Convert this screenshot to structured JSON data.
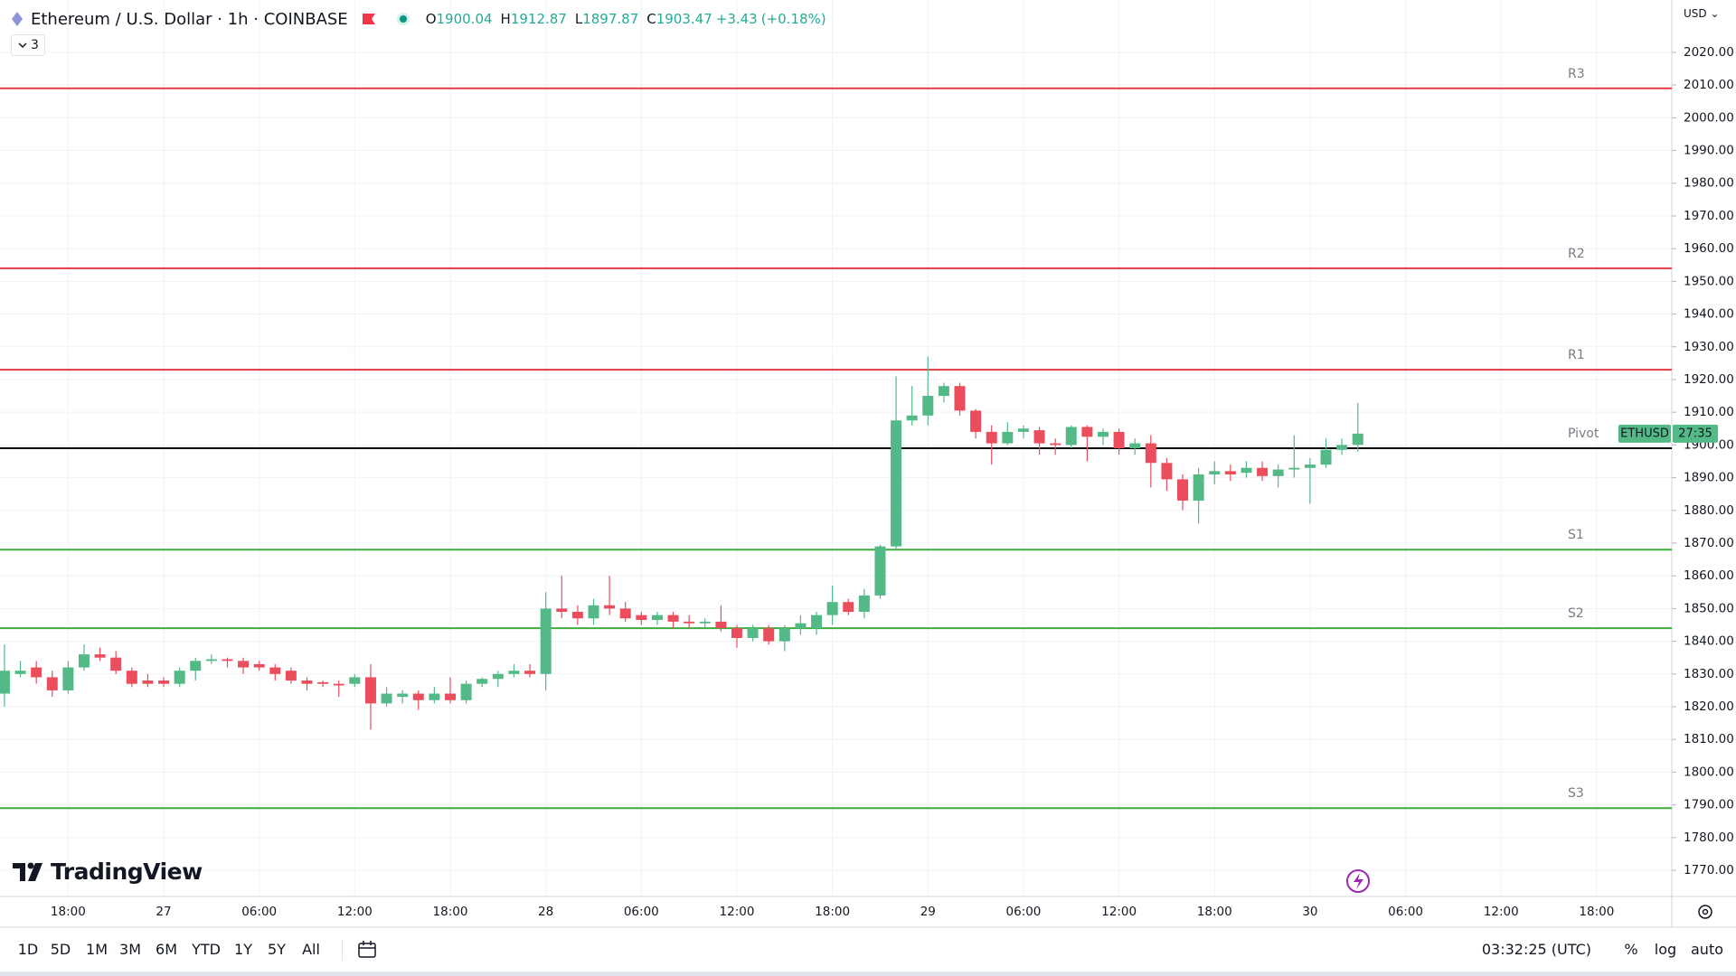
{
  "header": {
    "title": "Ethereum / U.S. Dollar · 1h · COINBASE",
    "ohlc_labels": [
      "O",
      "H",
      "L",
      "C"
    ],
    "change": "+3.43",
    "change_pct": "(+0.18%)",
    "indicators_count": "3"
  },
  "currency": "USD",
  "branding": "TradingView",
  "toolbar": {
    "ranges": [
      "1D",
      "5D",
      "1M",
      "3M",
      "6M",
      "YTD",
      "1Y",
      "5Y",
      "All"
    ],
    "clock": "03:32:25 (UTC)",
    "options": [
      "%",
      "log",
      "auto"
    ]
  },
  "chart_data": {
    "type": "candlestick",
    "categories": [
      null,
      null,
      null,
      null,
      "18:00",
      null,
      null,
      null,
      null,
      null,
      "27",
      null,
      null,
      null,
      null,
      null,
      "06:00",
      null,
      null,
      null,
      null,
      null,
      "12:00",
      null,
      null,
      null,
      null,
      null,
      "18:00",
      null,
      null,
      null,
      null,
      null,
      "28",
      null,
      null,
      null,
      null,
      null,
      "06:00",
      null,
      null,
      null,
      null,
      null,
      "12:00",
      null,
      null,
      null,
      null,
      null,
      "18:00",
      null,
      null,
      null,
      null,
      null,
      "29",
      null,
      null,
      null,
      null,
      null,
      "06:00",
      null,
      null,
      null,
      null,
      null,
      "12:00",
      null,
      null,
      null,
      null,
      null,
      "18:00",
      null,
      null,
      null,
      null,
      null,
      "30",
      null,
      null,
      null,
      null,
      null,
      "06:00",
      null,
      null,
      null,
      null,
      null,
      "12:00",
      null,
      null,
      null,
      null,
      null,
      "18:00",
      null,
      null,
      null,
      null
    ],
    "open": [
      1824,
      1830,
      1832,
      1829,
      1825,
      1832,
      1836,
      1835,
      1831,
      1828,
      1828,
      1827,
      1831,
      1834,
      1834.5,
      1834,
      1833,
      1832,
      1831,
      1828,
      1827.5,
      1827,
      1827,
      1829,
      1821,
      1823,
      1824,
      1822,
      1824,
      1822,
      1827,
      1828.5,
      1830,
      1831,
      1830,
      1850,
      1849,
      1847,
      1851,
      1850,
      1848,
      1846.5,
      1848,
      1846,
      1845.5,
      1846,
      1844,
      1841,
      1844,
      1840,
      1844,
      1844,
      1848,
      1852,
      1849,
      1854,
      1869,
      1907.5,
      1909,
      1915,
      1918,
      1910.5,
      1904,
      1900.5,
      1904,
      1904.5,
      1900.5,
      1900,
      1905.5,
      1902.5,
      1904,
      1899,
      1900.5,
      1894.5,
      1889.5,
      1883,
      1891,
      1892,
      1891.5,
      1893,
      1890.5,
      1892.5,
      1893,
      1894,
      1898.5,
      1900.04,
      null,
      null,
      null,
      null,
      null,
      null,
      null,
      null,
      null,
      null,
      null,
      null,
      null,
      null,
      null,
      null,
      null,
      null,
      null
    ],
    "high": [
      1839,
      1834,
      1834,
      1831,
      1834,
      1839,
      1838,
      1837,
      1832,
      1830,
      1829,
      1832,
      1835,
      1836,
      1835,
      1835,
      1834,
      1833,
      1832,
      1829,
      1828,
      1828,
      1830,
      1833,
      1826,
      1825,
      1825,
      1826,
      1829,
      1828,
      1829,
      1831,
      1833,
      1833,
      1855,
      1860,
      1851,
      1853,
      1860,
      1852,
      1849,
      1849,
      1849,
      1848,
      1847,
      1851,
      1845,
      1845,
      1845,
      1845,
      1848,
      1849,
      1857,
      1853,
      1856,
      1869.5,
      1921,
      1918,
      1927,
      1919,
      1919,
      1911,
      1906,
      1907,
      1906,
      1905.5,
      1902,
      1906,
      1906,
      1905,
      1905,
      1902,
      1903,
      1896,
      1891,
      1893,
      1895,
      1894,
      1895,
      1895,
      1894,
      1903,
      1896,
      1902,
      1902,
      1912.87,
      null,
      null,
      null,
      null,
      null,
      null,
      null,
      null,
      null,
      null,
      null,
      null,
      null,
      null,
      null,
      null,
      null,
      null,
      null
    ],
    "low": [
      1820,
      1829,
      1827,
      1823,
      1824,
      1831,
      1834,
      1830,
      1826,
      1826,
      1826,
      1826,
      1828,
      1833,
      1832,
      1830,
      1831,
      1828,
      1827,
      1825,
      1826,
      1823,
      1826,
      1813,
      1820,
      1821,
      1819,
      1821,
      1821,
      1821,
      1826,
      1826,
      1829,
      1829,
      1825,
      1847,
      1845,
      1845,
      1848,
      1846,
      1845,
      1845,
      1844,
      1844,
      1844,
      1843,
      1838,
      1840,
      1839,
      1837,
      1842,
      1842,
      1845,
      1848,
      1847,
      1853,
      1868,
      1906,
      1906,
      1913,
      1909,
      1902,
      1894,
      1900,
      1902,
      1897,
      1897,
      1899,
      1895,
      1900,
      1897,
      1897,
      1887,
      1886,
      1880,
      1876,
      1888,
      1889,
      1890,
      1889,
      1887,
      1890,
      1882,
      1893,
      1897,
      1897.87,
      null,
      null,
      null,
      null,
      null,
      null,
      null,
      null,
      null,
      null,
      null,
      null,
      null,
      null,
      null,
      null,
      null,
      null,
      null
    ],
    "close": [
      1831,
      1831,
      1829,
      1825,
      1832,
      1836,
      1835,
      1831,
      1827,
      1827,
      1827,
      1831,
      1834,
      1834.5,
      1834,
      1832,
      1832,
      1830,
      1828,
      1827,
      1827,
      1826.5,
      1829,
      1821,
      1824,
      1824,
      1822,
      1824,
      1822,
      1827,
      1828.5,
      1830,
      1831,
      1830,
      1850,
      1849,
      1847,
      1851,
      1850,
      1847,
      1846.5,
      1848,
      1846,
      1845.5,
      1846,
      1844,
      1841,
      1844,
      1840,
      1844,
      1845.5,
      1848,
      1852,
      1849,
      1854,
      1869,
      1907.5,
      1909,
      1915,
      1918,
      1910.5,
      1904,
      1900.5,
      1904,
      1905,
      1900.5,
      1900,
      1905.5,
      1902.5,
      1904,
      1899,
      1900.5,
      1894.5,
      1889.5,
      1883,
      1891,
      1892,
      1891,
      1893,
      1890.5,
      1892.5,
      1893,
      1894,
      1898.5,
      1900,
      1903.47,
      null,
      null,
      null,
      null,
      null,
      null,
      null,
      null,
      null,
      null,
      null,
      null,
      null,
      null,
      null,
      null,
      null,
      null,
      null
    ],
    "up_color": "#53b987",
    "down_color": "#eb4d5c",
    "ylim": [
      1762,
      2036
    ],
    "yticks": [
      {
        "value": 1770,
        "label": "1770.00"
      },
      {
        "value": 1780,
        "label": "1780.00"
      },
      {
        "value": 1790,
        "label": "1790.00"
      },
      {
        "value": 1800,
        "label": "1800.00"
      },
      {
        "value": 1810,
        "label": "1810.00"
      },
      {
        "value": 1820,
        "label": "1820.00"
      },
      {
        "value": 1830,
        "label": "1830.00"
      },
      {
        "value": 1840,
        "label": "1840.00"
      },
      {
        "value": 1850,
        "label": "1850.00"
      },
      {
        "value": 1860,
        "label": "1860.00"
      },
      {
        "value": 1870,
        "label": "1870.00"
      },
      {
        "value": 1880,
        "label": "1880.00"
      },
      {
        "value": 1890,
        "label": "1890.00"
      },
      {
        "value": 1900,
        "label": "1900.00"
      },
      {
        "value": 1910,
        "label": "1910.00"
      },
      {
        "value": 1920,
        "label": "1920.00"
      },
      {
        "value": 1930,
        "label": "1930.00"
      },
      {
        "value": 1940,
        "label": "1940.00"
      },
      {
        "value": 1950,
        "label": "1950.00"
      },
      {
        "value": 1960,
        "label": "1960.00"
      },
      {
        "value": 1970,
        "label": "1970.00"
      },
      {
        "value": 1980,
        "label": "1980.00"
      },
      {
        "value": 1990,
        "label": "1990.00"
      },
      {
        "value": 2000,
        "label": "2000.00"
      },
      {
        "value": 2010,
        "label": "2010.00"
      },
      {
        "value": 2020,
        "label": "2020.00"
      }
    ],
    "grid": true,
    "levels": [
      {
        "name": "R3",
        "value": 2009,
        "color": "#e53945"
      },
      {
        "name": "R2",
        "value": 1954,
        "color": "#e53945"
      },
      {
        "name": "R1",
        "value": 1923,
        "color": "#e53945"
      },
      {
        "name": "Pivot",
        "value": 1899,
        "color": "#000000"
      },
      {
        "name": "S1",
        "value": 1868,
        "color": "#3cae3c"
      },
      {
        "name": "S2",
        "value": 1844,
        "color": "#3cae3c"
      },
      {
        "name": "S3",
        "value": 1789,
        "color": "#3cae3c"
      }
    ],
    "symbol_tag": "ETHUSD",
    "countdown": "27:35"
  }
}
